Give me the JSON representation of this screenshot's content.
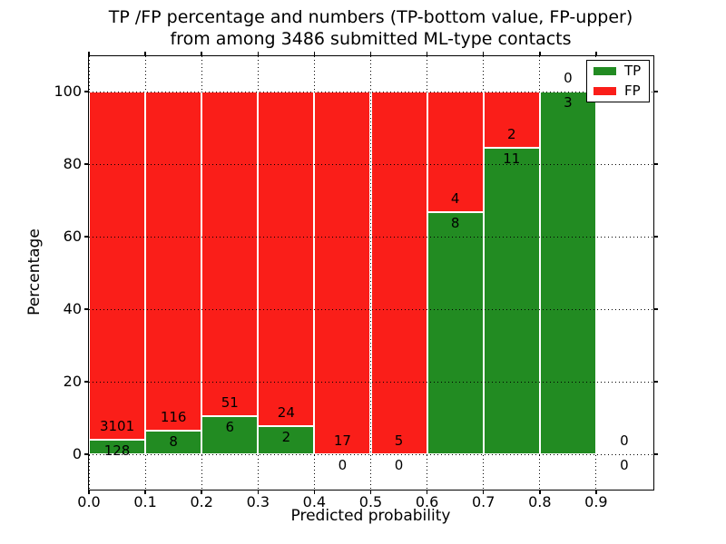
{
  "figure": {
    "title_line1": "TP /FP percentage and numbers (TP-bottom value, FP-upper)",
    "title_line2": "from among 3486 submitted ML-type contacts"
  },
  "axes": {
    "xlabel": "Predicted probability",
    "ylabel": "Percentage",
    "x_tick_labels": [
      "0.0",
      "0.1",
      "0.2",
      "0.3",
      "0.4",
      "0.5",
      "0.6",
      "0.7",
      "0.8",
      "0.9"
    ],
    "x_tick_values": [
      0.0,
      0.1,
      0.2,
      0.3,
      0.4,
      0.5,
      0.6,
      0.7,
      0.8,
      0.9
    ],
    "y_tick_labels": [
      "0",
      "20",
      "40",
      "60",
      "80",
      "100"
    ],
    "y_tick_values": [
      0,
      20,
      40,
      60,
      80,
      100
    ]
  },
  "legend": {
    "entries": [
      {
        "label": "TP",
        "color": "#228b22"
      },
      {
        "label": "FP",
        "color": "#fa1e19"
      }
    ]
  },
  "colors": {
    "tp": "#228b22",
    "fp": "#fa1e19",
    "grid": "#000000",
    "background": "#ffffff"
  },
  "chart_data": {
    "type": "bar",
    "stacked": true,
    "normalized_to_percent": 100,
    "title": "TP /FP percentage and numbers (TP-bottom value, FP-upper) from among 3486 submitted ML-type contacts",
    "xlabel": "Predicted probability",
    "ylabel": "Percentage",
    "xlim": [
      0.0,
      1.0
    ],
    "ylim": [
      -10,
      110
    ],
    "grid": "dotted",
    "legend_position": "upper right",
    "bin_width": 0.1,
    "series_names": [
      "TP",
      "FP"
    ],
    "total_contacts": 3486,
    "bins": [
      {
        "x0": 0.0,
        "x1": 0.1,
        "tp": 128,
        "fp": 3101,
        "tp_pct": 3.96
      },
      {
        "x0": 0.1,
        "x1": 0.2,
        "tp": 8,
        "fp": 116,
        "tp_pct": 6.45
      },
      {
        "x0": 0.2,
        "x1": 0.3,
        "tp": 6,
        "fp": 51,
        "tp_pct": 10.53
      },
      {
        "x0": 0.3,
        "x1": 0.4,
        "tp": 2,
        "fp": 24,
        "tp_pct": 7.69
      },
      {
        "x0": 0.4,
        "x1": 0.5,
        "tp": 0,
        "fp": 17,
        "tp_pct": 0.0
      },
      {
        "x0": 0.5,
        "x1": 0.6,
        "tp": 0,
        "fp": 5,
        "tp_pct": 0.0
      },
      {
        "x0": 0.6,
        "x1": 0.7,
        "tp": 8,
        "fp": 4,
        "tp_pct": 66.67
      },
      {
        "x0": 0.7,
        "x1": 0.8,
        "tp": 11,
        "fp": 2,
        "tp_pct": 84.62
      },
      {
        "x0": 0.8,
        "x1": 0.9,
        "tp": 3,
        "fp": 0,
        "tp_pct": 100.0
      },
      {
        "x0": 0.9,
        "x1": 1.0,
        "tp": 0,
        "fp": 0,
        "tp_pct": null
      }
    ]
  }
}
